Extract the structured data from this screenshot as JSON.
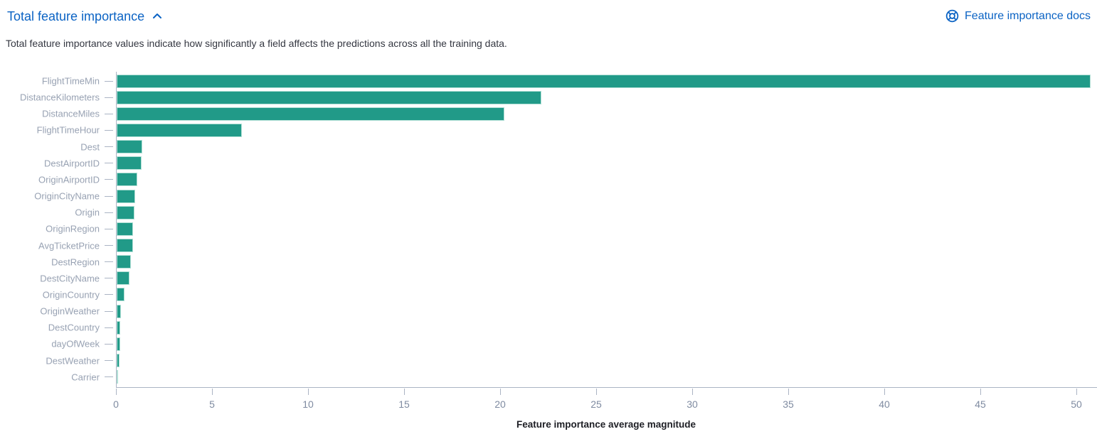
{
  "header": {
    "title": "Total feature importance",
    "collapse_icon": "chevron-up",
    "docs_link_label": "Feature importance docs",
    "docs_icon": "help-lifering",
    "link_color": "#0b63c4"
  },
  "description": "Total feature importance values indicate how significantly a field affects the predictions across all the training data.",
  "chart_data": {
    "type": "bar",
    "orientation": "horizontal",
    "title": "",
    "xlabel": "Feature importance average magnitude",
    "ylabel": "",
    "xlim": [
      0,
      51
    ],
    "xticks": [
      0,
      5,
      10,
      15,
      20,
      25,
      30,
      35,
      40,
      45,
      50
    ],
    "grid": false,
    "legend": "none",
    "bar_color": "#219a88",
    "bar_border_color": "#b2e0d6",
    "axis_color": "#abb4c4",
    "y_label_color": "#98a2b3",
    "x_label_color": "#7f8ba1",
    "categories": [
      "FlightTimeMin",
      "DistanceKilometers",
      "DistanceMiles",
      "FlightTimeHour",
      "Dest",
      "DestAirportID",
      "OriginAirportID",
      "OriginCityName",
      "Origin",
      "OriginRegion",
      "AvgTicketPrice",
      "DestRegion",
      "DestCityName",
      "OriginCountry",
      "OriginWeather",
      "DestCountry",
      "dayOfWeek",
      "DestWeather",
      "Carrier"
    ],
    "values": [
      50.7,
      22.1,
      20.2,
      6.5,
      1.35,
      1.3,
      1.08,
      0.98,
      0.94,
      0.86,
      0.84,
      0.73,
      0.66,
      0.42,
      0.22,
      0.2,
      0.19,
      0.16,
      0.05
    ]
  }
}
